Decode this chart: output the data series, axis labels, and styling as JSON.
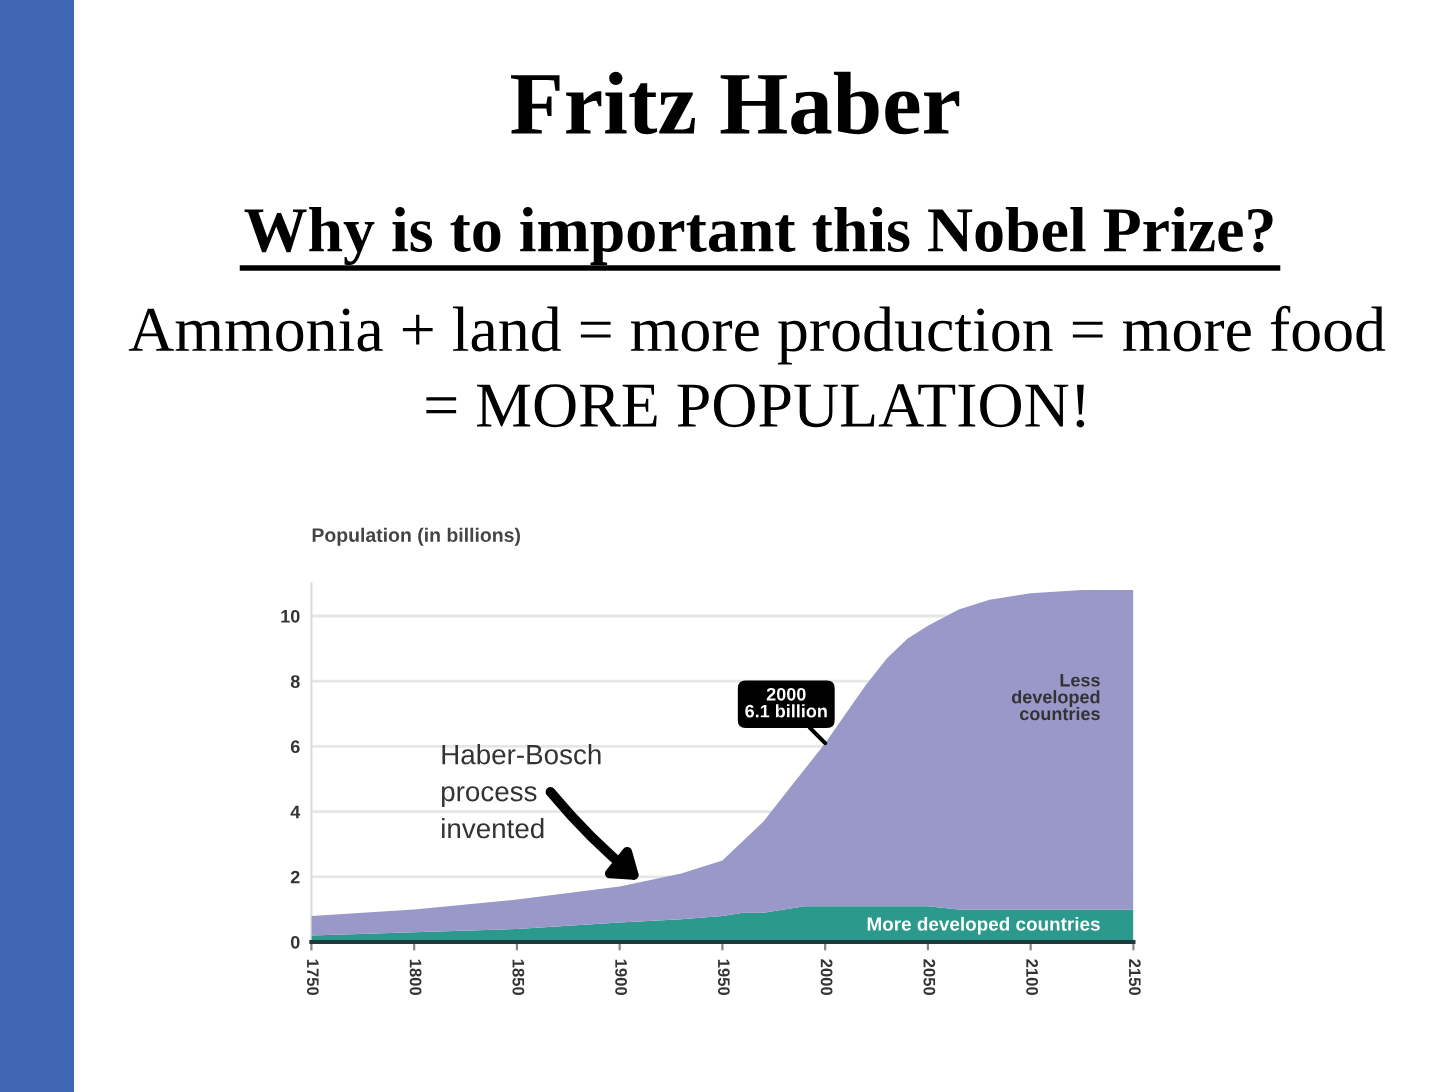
{
  "chart_data": {
    "type": "area",
    "stacked": true,
    "title": "Fritz Haber",
    "subtitle": "Why is to important this Nobel Prize?",
    "ylabel": "Population (in billions)",
    "x": [
      1750,
      1800,
      1850,
      1900,
      1930,
      1950,
      1960,
      1970,
      1980,
      1990,
      2000,
      2010,
      2020,
      2030,
      2040,
      2050,
      2065,
      2080,
      2100,
      2125,
      2150
    ],
    "series": [
      {
        "name": "More developed countries",
        "color": "#2b9a8d",
        "values": [
          0.2,
          0.3,
          0.4,
          0.6,
          0.7,
          0.8,
          0.9,
          0.9,
          1.0,
          1.1,
          1.1,
          1.1,
          1.1,
          1.1,
          1.1,
          1.1,
          1.0,
          1.0,
          1.0,
          1.0,
          1.0
        ]
      },
      {
        "name": "Less developed countries",
        "color": "#9a97c9",
        "values": [
          0.6,
          0.7,
          0.9,
          1.1,
          1.4,
          1.7,
          2.2,
          2.8,
          3.5,
          4.2,
          5.0,
          5.9,
          6.8,
          7.6,
          8.2,
          8.6,
          9.2,
          9.5,
          9.7,
          9.8,
          9.8
        ]
      }
    ],
    "xlim": [
      1750,
      2150
    ],
    "xticks": [
      1750,
      1800,
      1850,
      1900,
      1950,
      2000,
      2050,
      2100,
      2150
    ],
    "ylim": [
      0,
      11
    ],
    "yticks": [
      0,
      2,
      4,
      6,
      8,
      10
    ],
    "grid": "y",
    "annotations": [
      "Ammonia + land = more production = more food\n= MORE POPULATION!",
      {
        "text": "2000\n6.1 billion",
        "x": 2000,
        "y": 6.1
      },
      {
        "text": "Haber-Bosch\nprocess\ninvented",
        "x": 1910,
        "y": 1.9
      }
    ]
  }
}
